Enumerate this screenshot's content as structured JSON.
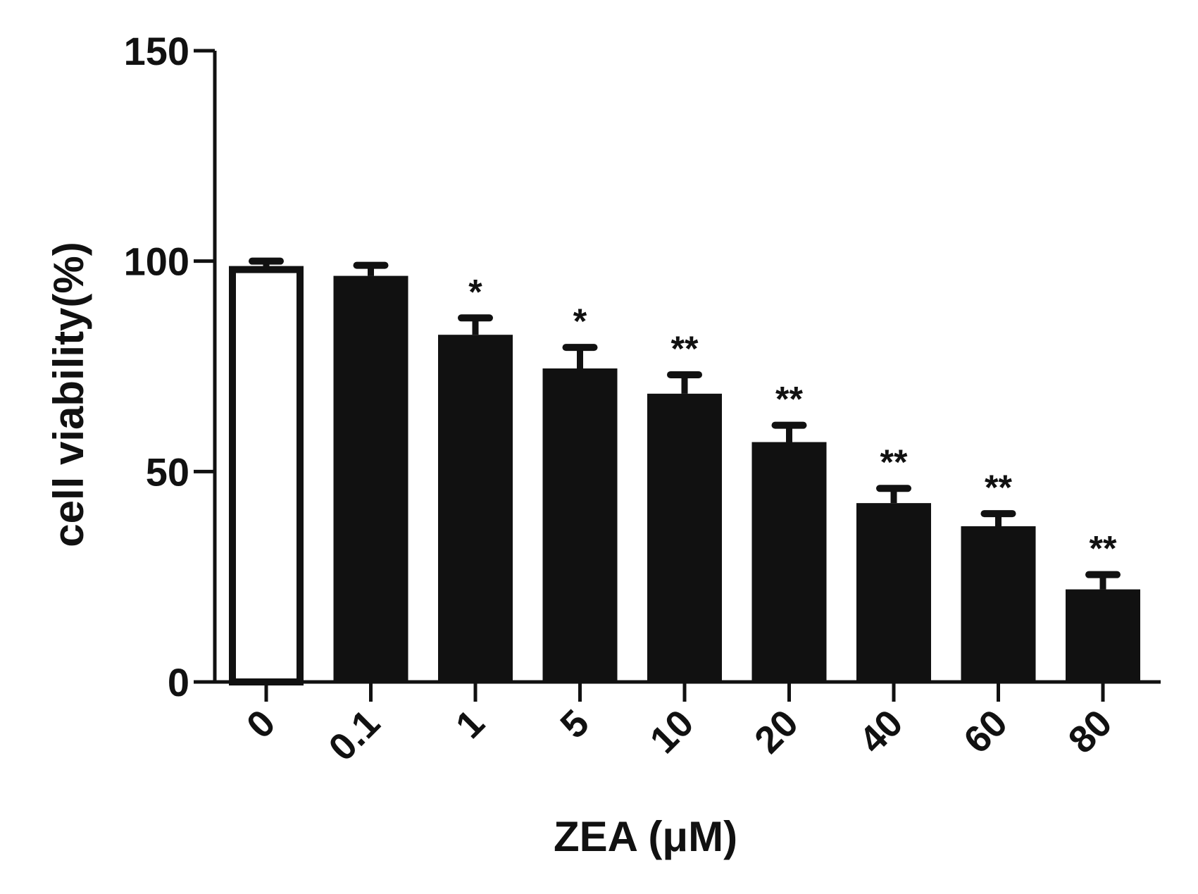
{
  "chart_data": {
    "type": "bar",
    "title": "",
    "xlabel": "ZEA (μM)",
    "ylabel": "cell viability(%)",
    "ylim": [
      0,
      150
    ],
    "yticks": [
      0,
      50,
      100,
      150
    ],
    "grid": false,
    "legend": "none",
    "categories": [
      "0",
      "0.1",
      "1",
      "5",
      "10",
      "20",
      "40",
      "60",
      "80"
    ],
    "values": [
      98,
      96.5,
      82.5,
      74.5,
      68.5,
      57,
      42.5,
      37,
      22
    ],
    "errors": [
      2,
      2.5,
      4,
      5,
      4.5,
      4,
      3.5,
      3,
      3.5
    ],
    "significance": [
      "",
      "",
      "*",
      "*",
      "**",
      "**",
      "**",
      "**",
      "**"
    ],
    "bar_fills": [
      "#ffffff",
      "#111111",
      "#111111",
      "#111111",
      "#111111",
      "#111111",
      "#111111",
      "#111111",
      "#111111"
    ],
    "bar_stroke": "#111111",
    "axis_color": "#111111"
  }
}
